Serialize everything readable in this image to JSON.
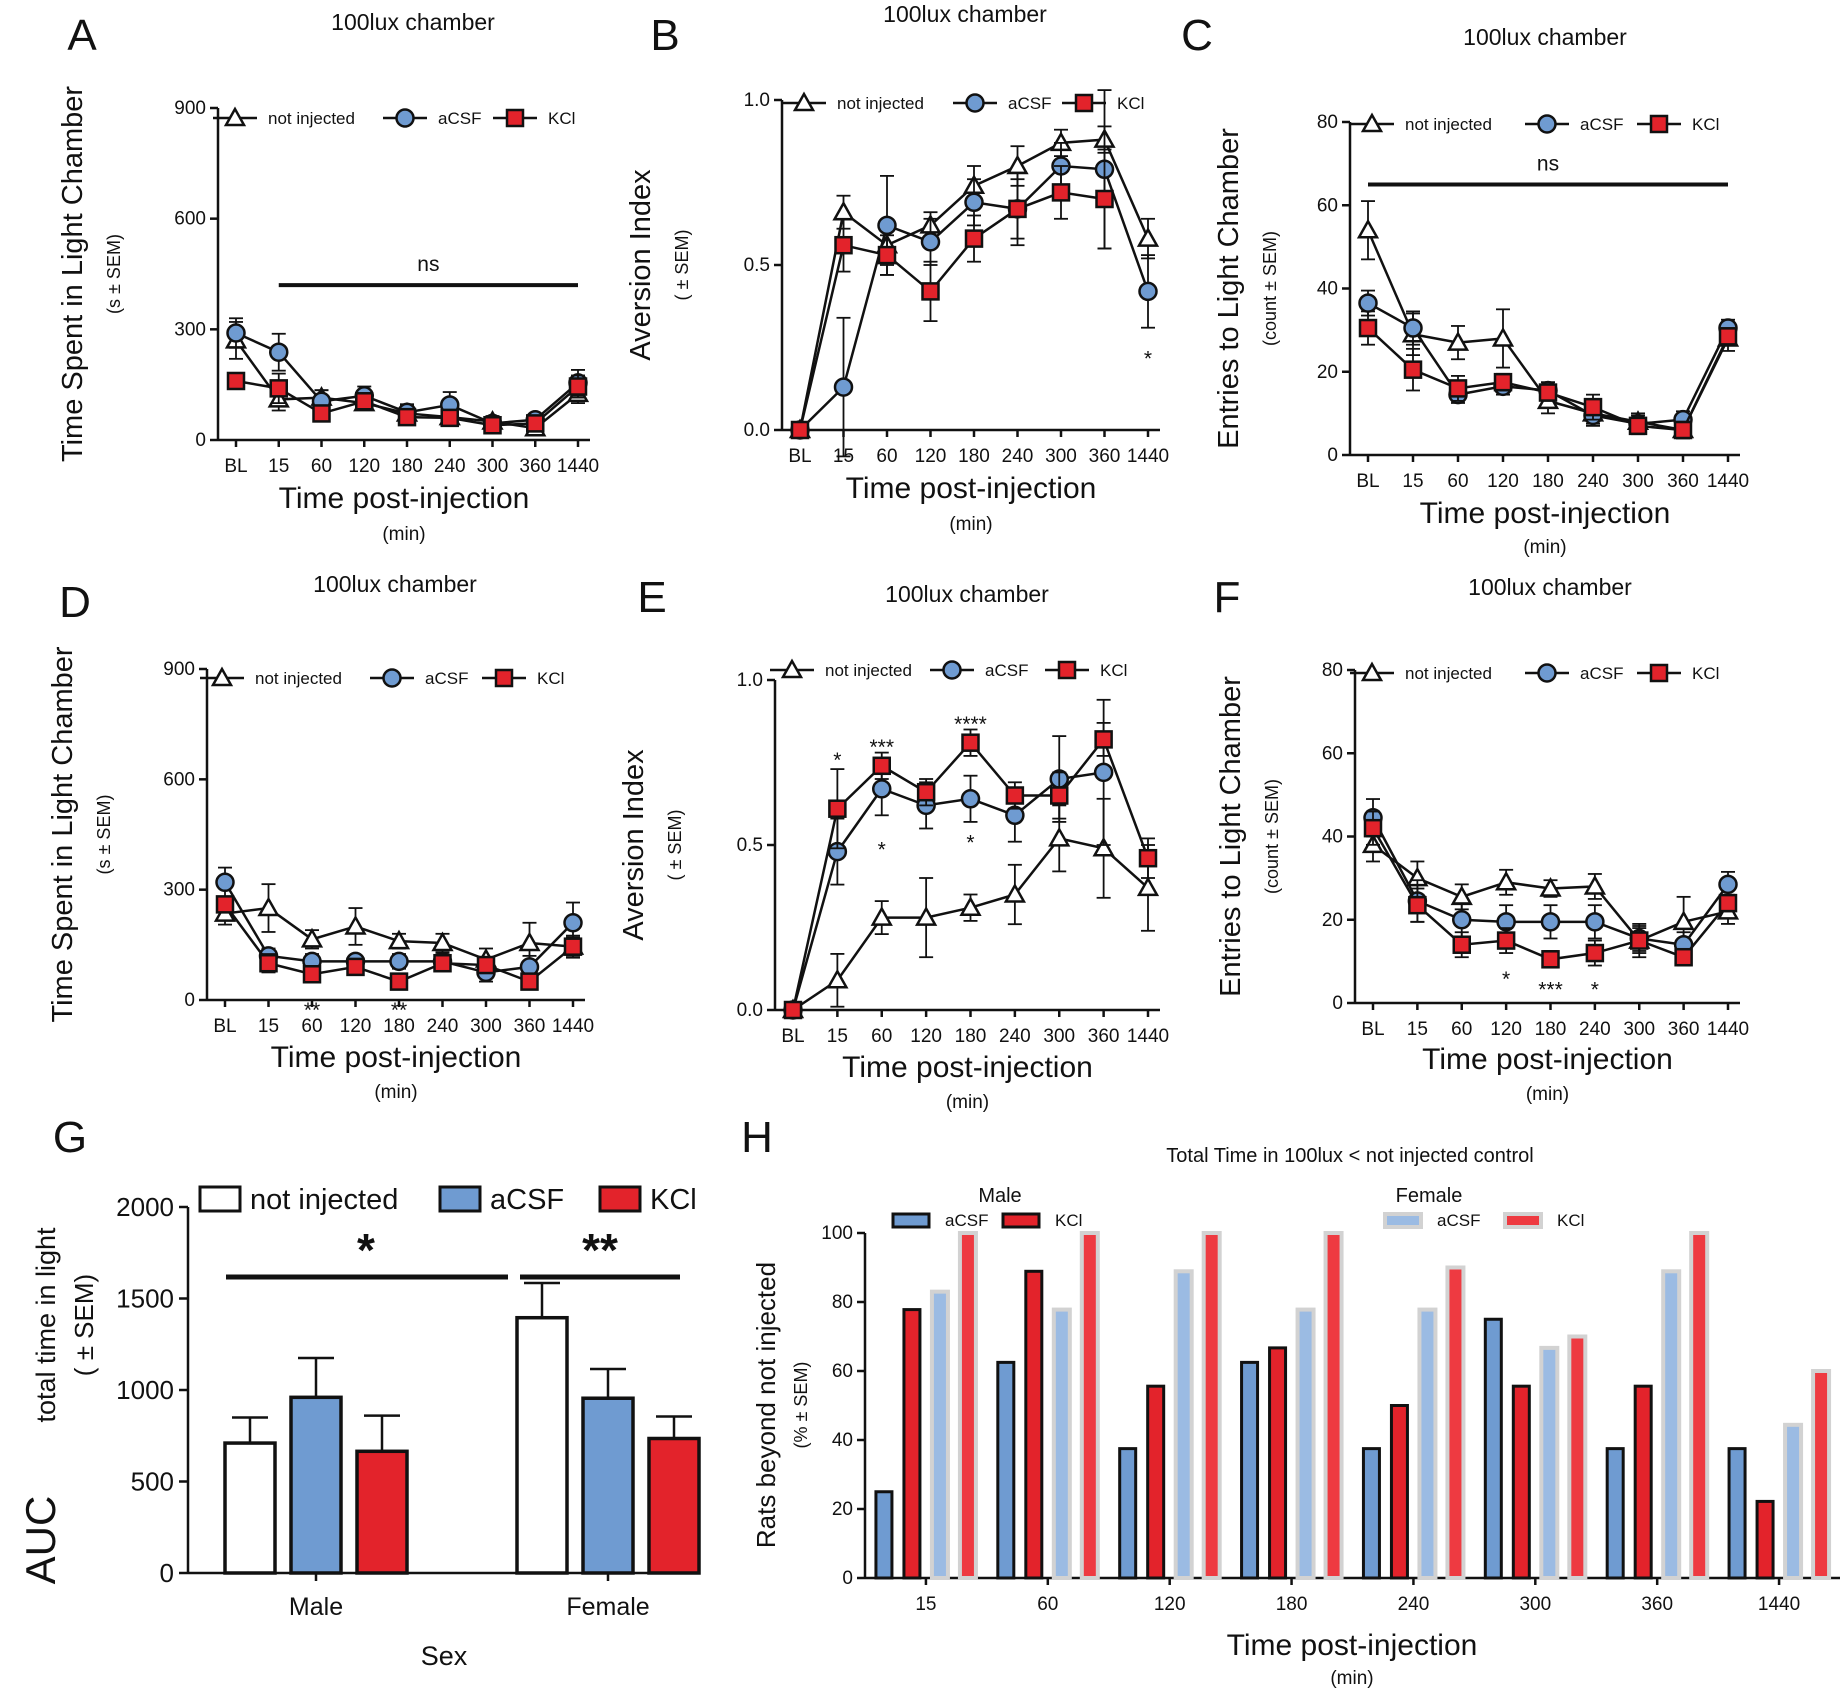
{
  "colors": {
    "not_injected": "#ffffff",
    "aCSF": "#6f9bd1",
    "KCl": "#e3232b",
    "aCSF_female": "#9bbbe3",
    "KCl_female": "#ee3a41",
    "ink": "#111111"
  },
  "chart_data": [
    {
      "panel": "A",
      "type": "line",
      "title": "100lux chamber",
      "categories": [
        "BL",
        "15",
        "60",
        "120",
        "180",
        "240",
        "300",
        "360",
        "1440"
      ],
      "xlabel": "Time post-injection",
      "xunit": "(min)",
      "ylabel": "Time Spent in Light Chamber",
      "yunit": "(s ± SEM)",
      "ylim": [
        0,
        900
      ],
      "yticks": [
        "0",
        "300",
        "600",
        "900"
      ],
      "ytick_values": [
        0,
        300,
        600,
        900
      ],
      "legend": [
        "not injected",
        "aCSF",
        "KCl"
      ],
      "series": [
        {
          "name": "not injected",
          "values": [
            270,
            110,
            115,
            100,
            72,
            62,
            50,
            32,
            125
          ],
          "errors": [
            50,
            30,
            20,
            15,
            25,
            15,
            15,
            15,
            25
          ]
        },
        {
          "name": "aCSF",
          "values": [
            290,
            238,
            105,
            120,
            75,
            95,
            45,
            55,
            155
          ],
          "errors": [
            40,
            50,
            30,
            25,
            20,
            35,
            15,
            15,
            35
          ]
        },
        {
          "name": "KCl",
          "values": [
            160,
            140,
            72,
            105,
            62,
            60,
            40,
            45,
            145
          ],
          "errors": [
            15,
            40,
            15,
            15,
            15,
            15,
            10,
            10,
            30
          ]
        }
      ],
      "annotations": [
        {
          "text": "ns",
          "span": [
            "15",
            "1440"
          ],
          "at": 420
        }
      ]
    },
    {
      "panel": "B",
      "type": "line",
      "title": "100lux chamber",
      "categories": [
        "BL",
        "15",
        "60",
        "120",
        "180",
        "240",
        "300",
        "360",
        "1440"
      ],
      "xlabel": "Time post-injection",
      "xunit": "(min)",
      "ylabel": "Aversion Index",
      "yunit": "( ± SEM)",
      "ylim": [
        0,
        1.0
      ],
      "yticks": [
        "0.0",
        "0.5",
        "1.0"
      ],
      "ytick_values": [
        0,
        0.5,
        1.0
      ],
      "legend": [
        "not injected",
        "aCSF",
        "KCl"
      ],
      "series": [
        {
          "name": "not injected",
          "values": [
            0,
            0.66,
            0.56,
            0.62,
            0.74,
            0.8,
            0.87,
            0.88,
            0.58
          ],
          "errors": [
            0,
            0.05,
            0.06,
            0.04,
            0.06,
            0.06,
            0.04,
            0.04,
            0.06
          ]
        },
        {
          "name": "aCSF",
          "values": [
            0,
            0.13,
            0.62,
            0.57,
            0.69,
            0.67,
            0.8,
            0.79,
            0.42
          ],
          "errors": [
            0,
            0.21,
            0.15,
            0.07,
            0.07,
            0.11,
            0.07,
            0.24,
            0.11
          ]
        },
        {
          "name": "KCl",
          "values": [
            0,
            0.56,
            0.53,
            0.42,
            0.58,
            0.67,
            0.72,
            0.7,
            null
          ],
          "errors": [
            0,
            0.08,
            0.06,
            0.09,
            0.07,
            0.09,
            0.08,
            0.15,
            0
          ]
        }
      ],
      "annotations": [
        {
          "text": "*",
          "category": "1440",
          "at": 0.22
        }
      ]
    },
    {
      "panel": "C",
      "type": "line",
      "title": "100lux chamber",
      "categories": [
        "BL",
        "15",
        "60",
        "120",
        "180",
        "240",
        "300",
        "360",
        "1440"
      ],
      "xlabel": "Time post-injection",
      "xunit": "(min)",
      "ylabel": "Entries to Light Chamber",
      "yunit": "(count ± SEM)",
      "ylim": [
        0,
        80
      ],
      "yticks": [
        "0",
        "20",
        "40",
        "60",
        "80"
      ],
      "ytick_values": [
        0,
        20,
        40,
        60,
        80
      ],
      "legend": [
        "not injected",
        "aCSF",
        "KCl"
      ],
      "series": [
        {
          "name": "not injected",
          "values": [
            54,
            29,
            27,
            28,
            13,
            10,
            8,
            6,
            28
          ],
          "errors": [
            7,
            5,
            4,
            7,
            3,
            3,
            2,
            2,
            3
          ]
        },
        {
          "name": "aCSF",
          "values": [
            36.5,
            30.5,
            14.5,
            16.5,
            15.5,
            9.5,
            7.5,
            8.5,
            30.5
          ],
          "errors": [
            3,
            4,
            2,
            2,
            2,
            2,
            2,
            2,
            2
          ]
        },
        {
          "name": "KCl",
          "values": [
            30.5,
            20.5,
            16,
            17.5,
            15,
            11.5,
            7,
            6,
            28.5
          ],
          "errors": [
            4,
            5,
            3,
            2,
            2,
            3,
            2,
            2,
            2
          ]
        }
      ],
      "annotations": [
        {
          "text": "ns",
          "span": [
            "BL",
            "1440"
          ],
          "at": 65
        }
      ]
    },
    {
      "panel": "D",
      "type": "line",
      "title": "100lux chamber",
      "categories": [
        "BL",
        "15",
        "60",
        "120",
        "180",
        "240",
        "300",
        "360",
        "1440"
      ],
      "xlabel": "Time post-injection",
      "xunit": "(min)",
      "ylabel": "Time Spent in Light Chamber",
      "yunit": "(s ± SEM)",
      "ylim": [
        0,
        900
      ],
      "yticks": [
        "0",
        "300",
        "600",
        "900"
      ],
      "ytick_values": [
        0,
        300,
        600,
        900
      ],
      "legend": [
        "not injected",
        "aCSF",
        "KCl"
      ],
      "series": [
        {
          "name": "not injected",
          "values": [
            235,
            250,
            165,
            200,
            160,
            155,
            110,
            155,
            145
          ],
          "errors": [
            30,
            65,
            25,
            50,
            20,
            25,
            30,
            55,
            30
          ]
        },
        {
          "name": "aCSF",
          "values": [
            320,
            120,
            105,
            105,
            105,
            105,
            75,
            90,
            210
          ],
          "errors": [
            40,
            20,
            20,
            15,
            20,
            20,
            25,
            30,
            55
          ]
        },
        {
          "name": "KCl",
          "values": [
            260,
            100,
            70,
            90,
            50,
            100,
            95,
            50,
            145
          ],
          "errors": [
            20,
            25,
            15,
            15,
            15,
            20,
            20,
            15,
            25
          ]
        }
      ],
      "annotations": [
        {
          "text": "**",
          "category": "60",
          "at": -25
        },
        {
          "text": "**",
          "category": "180",
          "at": -25
        }
      ]
    },
    {
      "panel": "E",
      "type": "line",
      "title": "100lux chamber",
      "categories": [
        "BL",
        "15",
        "60",
        "120",
        "180",
        "240",
        "300",
        "360",
        "1440"
      ],
      "xlabel": "Time post-injection",
      "xunit": "(min)",
      "ylabel": "Aversion Index",
      "yunit": "( ± SEM)",
      "ylim": [
        0,
        1.0
      ],
      "yticks": [
        "0.0",
        "0.5",
        "1.0"
      ],
      "ytick_values": [
        0,
        0.5,
        1.0
      ],
      "legend": [
        "not injected",
        "aCSF",
        "KCl"
      ],
      "series": [
        {
          "name": "not injected",
          "values": [
            0,
            0.09,
            0.28,
            0.28,
            0.31,
            0.35,
            0.52,
            0.49,
            0.37
          ],
          "errors": [
            0,
            0.08,
            0.05,
            0.12,
            0.04,
            0.09,
            0.1,
            0.15,
            0.13
          ]
        },
        {
          "name": "aCSF",
          "values": [
            0,
            0.48,
            0.67,
            0.62,
            0.64,
            0.59,
            0.7,
            0.72,
            null
          ],
          "errors": [
            0,
            0.1,
            0.08,
            0.07,
            0.07,
            0.08,
            0.13,
            0.22,
            0
          ]
        },
        {
          "name": "KCl",
          "values": [
            0,
            0.61,
            0.74,
            0.66,
            0.81,
            0.65,
            0.65,
            0.82,
            0.46
          ],
          "errors": [
            0,
            0.12,
            0.04,
            0.04,
            0.04,
            0.04,
            0.07,
            0.05,
            0.06
          ]
        }
      ],
      "annotations": [
        {
          "text": "*",
          "category": "15",
          "at": 0.76
        },
        {
          "text": "***",
          "category": "60",
          "at": 0.8
        },
        {
          "text": "****",
          "category": "180",
          "at": 0.87
        },
        {
          "text": "*",
          "category": "60",
          "at": 0.49
        },
        {
          "text": "*",
          "category": "180",
          "at": 0.51
        }
      ]
    },
    {
      "panel": "F",
      "type": "line",
      "title": "100lux chamber",
      "categories": [
        "BL",
        "15",
        "60",
        "120",
        "180",
        "240",
        "300",
        "360",
        "1440"
      ],
      "xlabel": "Time post-injection",
      "xunit": "(min)",
      "ylabel": "Entries to Light Chamber",
      "yunit": "(count ± SEM)",
      "ylim": [
        0,
        80
      ],
      "yticks": [
        "0",
        "20",
        "40",
        "60",
        "80"
      ],
      "ytick_values": [
        0,
        20,
        40,
        60,
        80
      ],
      "legend": [
        "not injected",
        "aCSF",
        "KCl"
      ],
      "series": [
        {
          "name": "not injected",
          "values": [
            38,
            30,
            25.5,
            29,
            27.5,
            28,
            15,
            19.5,
            22
          ],
          "errors": [
            4,
            4,
            3,
            3,
            2,
            3,
            4,
            6,
            3
          ]
        },
        {
          "name": "aCSF",
          "values": [
            44.5,
            24.5,
            20,
            19.5,
            19.5,
            19.5,
            15.5,
            14,
            28.5
          ],
          "errors": [
            4.5,
            5,
            4,
            4,
            4,
            4,
            3,
            3,
            3
          ]
        },
        {
          "name": "KCl",
          "values": [
            42,
            23.5,
            14,
            15,
            10.5,
            12,
            15,
            11,
            24
          ],
          "errors": [
            4,
            4,
            3,
            3,
            2,
            3,
            3,
            2,
            2
          ]
        }
      ],
      "annotations": [
        {
          "text": "*",
          "category": "120",
          "at": 6
        },
        {
          "text": "***",
          "category": "180",
          "at": 3.5
        },
        {
          "text": "*",
          "category": "240",
          "at": 3.5
        }
      ]
    },
    {
      "panel": "G",
      "type": "bar",
      "categories": [
        "Male",
        "Female"
      ],
      "xlabel": "Sex",
      "ylabel": "AUC",
      "ylabel_sub": "total time in light",
      "yunit": "( ± SEM)",
      "ylim": [
        0,
        2000
      ],
      "yticks": [
        "0",
        "500",
        "1000",
        "1500",
        "2000"
      ],
      "ytick_values": [
        0,
        500,
        1000,
        1500,
        2000
      ],
      "legend": [
        "not injected",
        "aCSF",
        "KCl"
      ],
      "series": [
        {
          "name": "not injected",
          "values": [
            710,
            1395
          ],
          "errors": [
            140,
            190
          ]
        },
        {
          "name": "aCSF",
          "values": [
            960,
            955
          ],
          "errors": [
            215,
            160
          ]
        },
        {
          "name": "KCl",
          "values": [
            665,
            735
          ],
          "errors": [
            195,
            120
          ]
        }
      ],
      "annotations": [
        {
          "text": "*",
          "at": 1630
        },
        {
          "text": "**",
          "at": 1630
        }
      ]
    },
    {
      "panel": "H",
      "type": "bar",
      "title": "Total Time in 100lux < not injected control",
      "categories": [
        "15",
        "60",
        "120",
        "180",
        "240",
        "300",
        "360",
        "1440"
      ],
      "xlabel": "Time post-injection",
      "xunit": "(min)",
      "ylabel": "Rats beyond not injected",
      "yunit": "(% ± SEM)",
      "ylim": [
        0,
        100
      ],
      "yticks": [
        "0",
        "20",
        "40",
        "60",
        "80",
        "100"
      ],
      "ytick_values": [
        0,
        20,
        40,
        60,
        80,
        100
      ],
      "legend_groups": [
        {
          "title": "Male",
          "entries": [
            "aCSF",
            "KCl"
          ]
        },
        {
          "title": "Female",
          "entries": [
            "aCSF",
            "KCl"
          ]
        }
      ],
      "series": [
        {
          "name": "Male aCSF",
          "values": [
            25,
            62.5,
            37.5,
            62.5,
            37.5,
            75,
            37.5,
            37.5
          ]
        },
        {
          "name": "Male KCl",
          "values": [
            77.8,
            88.9,
            55.6,
            66.7,
            50,
            55.6,
            55.6,
            22.2
          ]
        },
        {
          "name": "Female aCSF",
          "values": [
            83,
            77.8,
            88.9,
            77.8,
            77.8,
            66.7,
            88.9,
            44.4
          ]
        },
        {
          "name": "Female KCl",
          "values": [
            100,
            100,
            100,
            100,
            90,
            70,
            100,
            60
          ]
        }
      ]
    }
  ]
}
